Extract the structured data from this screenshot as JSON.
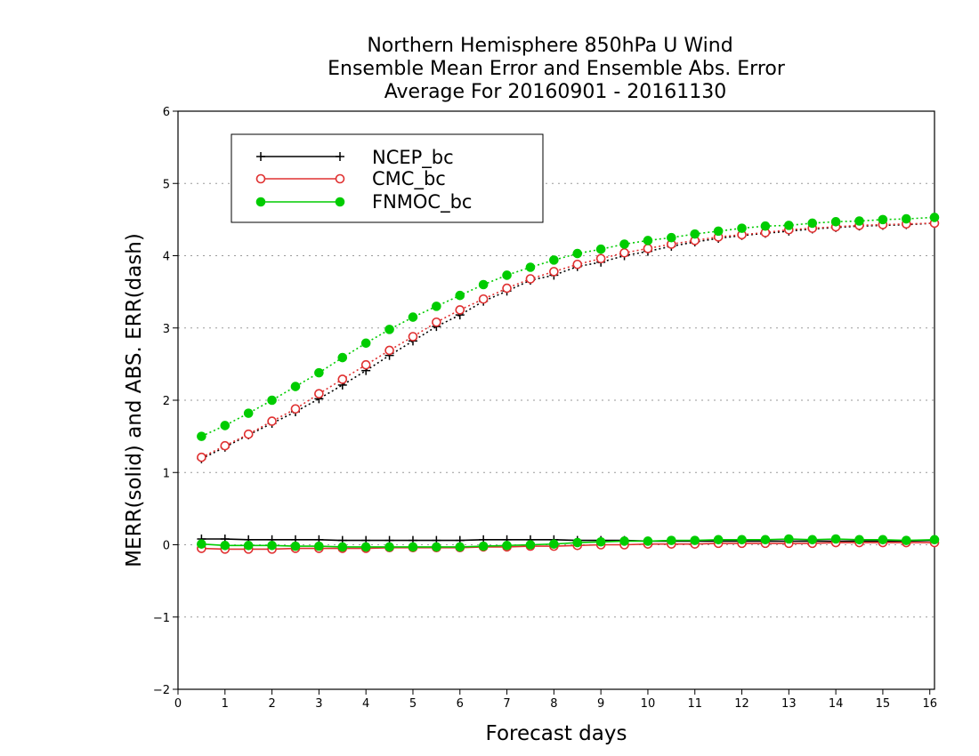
{
  "chart_data": {
    "type": "line",
    "title": "Northern Hemisphere 850hPa U Wind",
    "subtitle": "Ensemble Mean Error and Ensemble Abs. Error",
    "subtitle2": "Average For 20160901 - 20161130",
    "xlabel": "Forecast days",
    "ylabel": "MERR(solid) and ABS. ERR(dash)",
    "xlim": [
      0,
      16.1
    ],
    "ylim": [
      -2,
      6
    ],
    "xticks": [
      "0",
      "1",
      "2",
      "3",
      "4",
      "5",
      "6",
      "7",
      "8",
      "9",
      "10",
      "11",
      "12",
      "13",
      "14",
      "15",
      "16"
    ],
    "yticks": [
      "−2",
      "−1",
      "0",
      "1",
      "2",
      "3",
      "4",
      "5",
      "6"
    ],
    "grid": true,
    "legend_position": "top-left",
    "x": [
      0.5,
      1,
      1.5,
      2,
      2.5,
      3,
      3.5,
      4,
      4.5,
      5,
      5.5,
      6,
      6.5,
      7,
      7.5,
      8,
      8.5,
      9,
      9.5,
      10,
      10.5,
      11,
      11.5,
      12,
      12.5,
      13,
      13.5,
      14,
      14.5,
      15,
      15.5,
      16.1
    ],
    "series": [
      {
        "name": "NCEP_bc",
        "color": "#000000",
        "marker": "plus",
        "merr": [
          0.08,
          0.08,
          0.07,
          0.07,
          0.07,
          0.07,
          0.06,
          0.06,
          0.06,
          0.06,
          0.06,
          0.06,
          0.07,
          0.07,
          0.07,
          0.07,
          0.06,
          0.06,
          0.06,
          0.05,
          0.05,
          0.05,
          0.05,
          0.05,
          0.05,
          0.05,
          0.05,
          0.05,
          0.05,
          0.05,
          0.05,
          0.06
        ],
        "abs_err": [
          1.19,
          1.35,
          1.52,
          1.68,
          1.84,
          2.02,
          2.21,
          2.41,
          2.62,
          2.82,
          3.02,
          3.18,
          3.37,
          3.51,
          3.66,
          3.73,
          3.85,
          3.91,
          4.0,
          4.06,
          4.13,
          4.19,
          4.24,
          4.28,
          4.31,
          4.34,
          4.37,
          4.39,
          4.41,
          4.42,
          4.43,
          4.45
        ]
      },
      {
        "name": "CMC_bc",
        "color": "#e03030",
        "marker": "open-circle",
        "merr": [
          -0.05,
          -0.06,
          -0.06,
          -0.06,
          -0.05,
          -0.05,
          -0.05,
          -0.05,
          -0.04,
          -0.04,
          -0.04,
          -0.04,
          -0.03,
          -0.03,
          -0.02,
          -0.02,
          -0.01,
          0.0,
          0.0,
          0.01,
          0.01,
          0.01,
          0.02,
          0.02,
          0.02,
          0.02,
          0.02,
          0.03,
          0.03,
          0.03,
          0.03,
          0.03
        ],
        "abs_err": [
          1.21,
          1.37,
          1.53,
          1.71,
          1.88,
          2.09,
          2.29,
          2.49,
          2.69,
          2.88,
          3.08,
          3.25,
          3.4,
          3.55,
          3.68,
          3.78,
          3.88,
          3.96,
          4.04,
          4.1,
          4.16,
          4.21,
          4.26,
          4.29,
          4.32,
          4.36,
          4.38,
          4.4,
          4.42,
          4.43,
          4.44,
          4.45
        ]
      },
      {
        "name": "FNMOC_bc",
        "color": "#00cc00",
        "marker": "filled-circle",
        "merr": [
          0.01,
          -0.01,
          -0.01,
          -0.01,
          -0.02,
          -0.02,
          -0.03,
          -0.03,
          -0.03,
          -0.03,
          -0.03,
          -0.03,
          -0.02,
          -0.01,
          0.0,
          0.01,
          0.03,
          0.04,
          0.05,
          0.05,
          0.06,
          0.06,
          0.07,
          0.07,
          0.07,
          0.08,
          0.07,
          0.08,
          0.07,
          0.07,
          0.06,
          0.07
        ],
        "abs_err": [
          1.5,
          1.65,
          1.82,
          2.0,
          2.19,
          2.38,
          2.59,
          2.79,
          2.98,
          3.15,
          3.3,
          3.45,
          3.6,
          3.73,
          3.84,
          3.94,
          4.03,
          4.09,
          4.16,
          4.21,
          4.25,
          4.3,
          4.34,
          4.38,
          4.41,
          4.42,
          4.45,
          4.47,
          4.48,
          4.5,
          4.51,
          4.53
        ]
      }
    ]
  }
}
